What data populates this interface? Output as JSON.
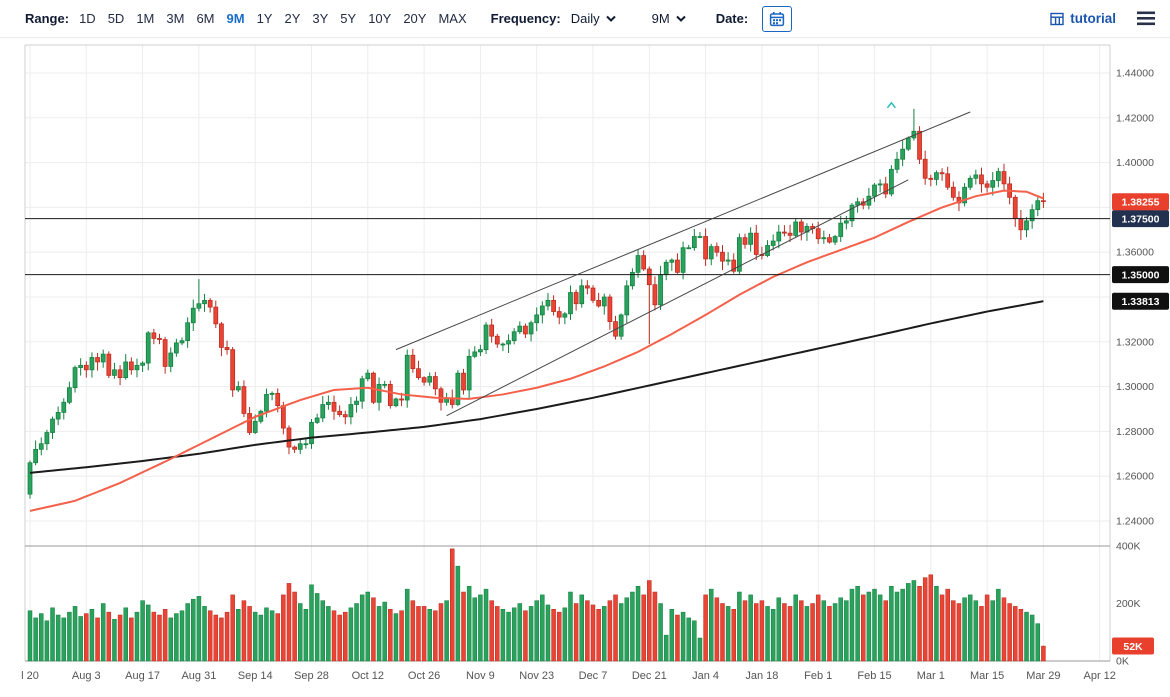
{
  "toolbar": {
    "range_label": "Range:",
    "range_options": [
      "1D",
      "5D",
      "1M",
      "3M",
      "6M",
      "9M",
      "1Y",
      "2Y",
      "3Y",
      "5Y",
      "10Y",
      "20Y",
      "MAX"
    ],
    "range_active": "9M",
    "frequency_label": "Frequency:",
    "frequency_value": "Daily",
    "period_value": "9M",
    "date_label": "Date:",
    "tutorial_label": "tutorial"
  },
  "colors": {
    "candle_up": "#2aa15c",
    "candle_up_stroke": "#128040",
    "candle_down": "#ea4435",
    "candle_down_stroke": "#b92b20",
    "ma_red": "#f4604a",
    "ma_black": "#1b1b1b",
    "grid": "#ededed",
    "frame": "#cfcfcf",
    "pane_border": "#9a9a9a",
    "axis_text": "#555555",
    "last_price_badge": "#e8402d",
    "navy_badge": "#22314f",
    "black_badge": "#101010",
    "accent_blue": "#1b6ec8"
  },
  "chart_data": {
    "type": "candlestick",
    "frequency": "Daily",
    "range": "9M",
    "x_labels": [
      "l 20",
      "Aug 3",
      "Aug 17",
      "Aug 31",
      "Sep 14",
      "Sep 28",
      "Oct 12",
      "Oct 26",
      "Nov 9",
      "Nov 23",
      "Dec 7",
      "Dec 21",
      "Jan 4",
      "Jan 18",
      "Feb 1",
      "Feb 15",
      "Mar 1",
      "Mar 15",
      "Mar 29",
      "Apr 12"
    ],
    "days_per_label": 10,
    "y_axis_labels": [
      "1.44000",
      "1.42000",
      "1.40000",
      "1.38000",
      "1.36000",
      "1.34000",
      "1.32000",
      "1.30000",
      "1.28000",
      "1.26000",
      "1.24000"
    ],
    "y_range": [
      1.2295,
      1.4525
    ],
    "volume_axis_labels": [
      "400K",
      "200K",
      "0K"
    ],
    "volume_axis_values": [
      400,
      200,
      0
    ],
    "price_badges": [
      {
        "text": "1.38255",
        "price": 1.38255,
        "color": "#e8402d",
        "role": "last-price"
      },
      {
        "text": "1.37500",
        "price": 1.375,
        "color": "#22314f",
        "role": "horizontal-line"
      },
      {
        "text": "1.35000",
        "price": 1.35,
        "color": "#101010",
        "role": "horizontal-line"
      },
      {
        "text": "1.33813",
        "price": 1.33813,
        "color": "#101010",
        "role": "moving-average"
      }
    ],
    "volume_badge": {
      "text": "52K",
      "value": 52,
      "color": "#e8402d"
    },
    "horizontal_lines": [
      1.375,
      1.35
    ],
    "trendlines": [
      {
        "d1": 65,
        "p1": 1.3165,
        "d2": 167,
        "p2": 1.4226
      },
      {
        "d1": 74,
        "p1": 1.287,
        "d2": 156,
        "p2": 1.3923
      }
    ],
    "annotation_marker": {
      "day": 153,
      "price": 1.4258,
      "color": "#2cb9b4"
    },
    "ma_red": [
      [
        0,
        1.2445
      ],
      [
        8,
        1.249
      ],
      [
        16,
        1.257
      ],
      [
        24,
        1.2665
      ],
      [
        32,
        1.2765
      ],
      [
        40,
        1.2865
      ],
      [
        48,
        1.294
      ],
      [
        54,
        1.2985
      ],
      [
        60,
        1.2995
      ],
      [
        66,
        1.2965
      ],
      [
        72,
        1.295
      ],
      [
        78,
        1.2945
      ],
      [
        84,
        1.2965
      ],
      [
        90,
        1.2995
      ],
      [
        96,
        1.3035
      ],
      [
        102,
        1.309
      ],
      [
        108,
        1.3155
      ],
      [
        114,
        1.3235
      ],
      [
        120,
        1.332
      ],
      [
        126,
        1.341
      ],
      [
        132,
        1.349
      ],
      [
        138,
        1.3555
      ],
      [
        144,
        1.361
      ],
      [
        150,
        1.3665
      ],
      [
        156,
        1.3735
      ],
      [
        162,
        1.38
      ],
      [
        168,
        1.385
      ],
      [
        173,
        1.3875
      ],
      [
        177,
        1.387
      ],
      [
        180,
        1.384
      ]
    ],
    "ma_black": [
      [
        0,
        1.2615
      ],
      [
        10,
        1.264
      ],
      [
        20,
        1.2668
      ],
      [
        30,
        1.27
      ],
      [
        40,
        1.274
      ],
      [
        50,
        1.2772
      ],
      [
        60,
        1.2795
      ],
      [
        70,
        1.282
      ],
      [
        80,
        1.2855
      ],
      [
        90,
        1.29
      ],
      [
        100,
        1.295
      ],
      [
        110,
        1.3005
      ],
      [
        120,
        1.306
      ],
      [
        130,
        1.3115
      ],
      [
        140,
        1.317
      ],
      [
        150,
        1.3225
      ],
      [
        160,
        1.3282
      ],
      [
        170,
        1.3335
      ],
      [
        180,
        1.33813
      ]
    ],
    "first_open": 1.252,
    "closes": [
      1.266,
      1.272,
      1.2745,
      1.2795,
      1.2855,
      1.2885,
      1.293,
      1.2995,
      1.3085,
      1.3095,
      1.3075,
      1.313,
      1.311,
      1.3145,
      1.305,
      1.3075,
      1.304,
      1.311,
      1.3075,
      1.3095,
      1.3105,
      1.324,
      1.3215,
      1.321,
      1.309,
      1.315,
      1.3195,
      1.3205,
      1.3285,
      1.335,
      1.337,
      1.3385,
      1.3355,
      1.328,
      1.3175,
      1.3165,
      1.2985,
      1.3,
      1.288,
      1.2795,
      1.2845,
      1.289,
      1.2965,
      1.297,
      1.2915,
      1.2815,
      1.273,
      1.272,
      1.2745,
      1.2745,
      1.284,
      1.286,
      1.292,
      1.293,
      1.289,
      1.2875,
      1.2865,
      1.292,
      1.2935,
      1.3035,
      1.306,
      1.293,
      1.301,
      1.301,
      1.2915,
      1.2945,
      1.294,
      1.314,
      1.308,
      1.304,
      1.302,
      1.3045,
      1.299,
      1.293,
      1.295,
      1.292,
      1.306,
      1.2985,
      1.3135,
      1.3155,
      1.3165,
      1.3275,
      1.3225,
      1.319,
      1.319,
      1.3205,
      1.3245,
      1.327,
      1.3235,
      1.3285,
      1.332,
      1.336,
      1.3385,
      1.3335,
      1.331,
      1.3325,
      1.342,
      1.337,
      1.345,
      1.344,
      1.3385,
      1.336,
      1.34,
      1.329,
      1.3225,
      1.332,
      1.345,
      1.351,
      1.3585,
      1.3525,
      1.3455,
      1.3365,
      1.35,
      1.3555,
      1.3565,
      1.351,
      1.362,
      1.362,
      1.367,
      1.367,
      1.357,
      1.3625,
      1.36,
      1.356,
      1.3565,
      1.3515,
      1.3665,
      1.3635,
      1.3685,
      1.359,
      1.3585,
      1.363,
      1.365,
      1.369,
      1.3685,
      1.3675,
      1.3735,
      1.369,
      1.3715,
      1.3705,
      1.366,
      1.3665,
      1.3645,
      1.367,
      1.373,
      1.374,
      1.381,
      1.3825,
      1.381,
      1.385,
      1.39,
      1.3905,
      1.386,
      1.397,
      1.4015,
      1.406,
      1.411,
      1.414,
      1.4015,
      1.393,
      1.3925,
      1.3955,
      1.395,
      1.389,
      1.3845,
      1.382,
      1.389,
      1.393,
      1.3945,
      1.3905,
      1.389,
      1.392,
      1.396,
      1.3905,
      1.3845,
      1.375,
      1.37,
      1.374,
      1.379,
      1.383,
      1.38255
    ],
    "volumes_k": [
      175,
      150,
      165,
      140,
      185,
      160,
      150,
      170,
      190,
      155,
      165,
      180,
      150,
      200,
      170,
      145,
      160,
      185,
      150,
      170,
      210,
      195,
      170,
      160,
      180,
      150,
      165,
      175,
      200,
      215,
      225,
      190,
      175,
      160,
      150,
      170,
      230,
      180,
      210,
      190,
      170,
      160,
      185,
      175,
      165,
      230,
      270,
      240,
      200,
      180,
      265,
      235,
      210,
      190,
      175,
      160,
      170,
      185,
      200,
      230,
      240,
      220,
      190,
      205,
      180,
      165,
      175,
      250,
      210,
      190,
      190,
      180,
      175,
      200,
      210,
      390,
      330,
      240,
      260,
      220,
      230,
      250,
      210,
      190,
      180,
      170,
      185,
      200,
      175,
      190,
      210,
      230,
      195,
      180,
      170,
      185,
      240,
      200,
      230,
      210,
      195,
      180,
      190,
      210,
      230,
      200,
      220,
      240,
      260,
      230,
      280,
      240,
      200,
      90,
      180,
      160,
      170,
      150,
      140,
      80,
      230,
      250,
      220,
      200,
      190,
      180,
      240,
      210,
      230,
      200,
      210,
      190,
      180,
      220,
      200,
      190,
      230,
      210,
      190,
      200,
      230,
      210,
      190,
      200,
      220,
      210,
      250,
      260,
      230,
      240,
      250,
      230,
      210,
      260,
      240,
      250,
      270,
      280,
      260,
      290,
      300,
      260,
      230,
      250,
      210,
      200,
      220,
      230,
      210,
      190,
      230,
      210,
      250,
      220,
      200,
      190,
      180,
      170,
      160,
      130,
      52
    ],
    "wick_overrides": {
      "0": {
        "low": 1.25
      },
      "30": {
        "high": 1.348
      },
      "110": {
        "low": 1.319
      },
      "157": {
        "high": 1.424
      },
      "176": {
        "low": 1.3655
      }
    }
  }
}
